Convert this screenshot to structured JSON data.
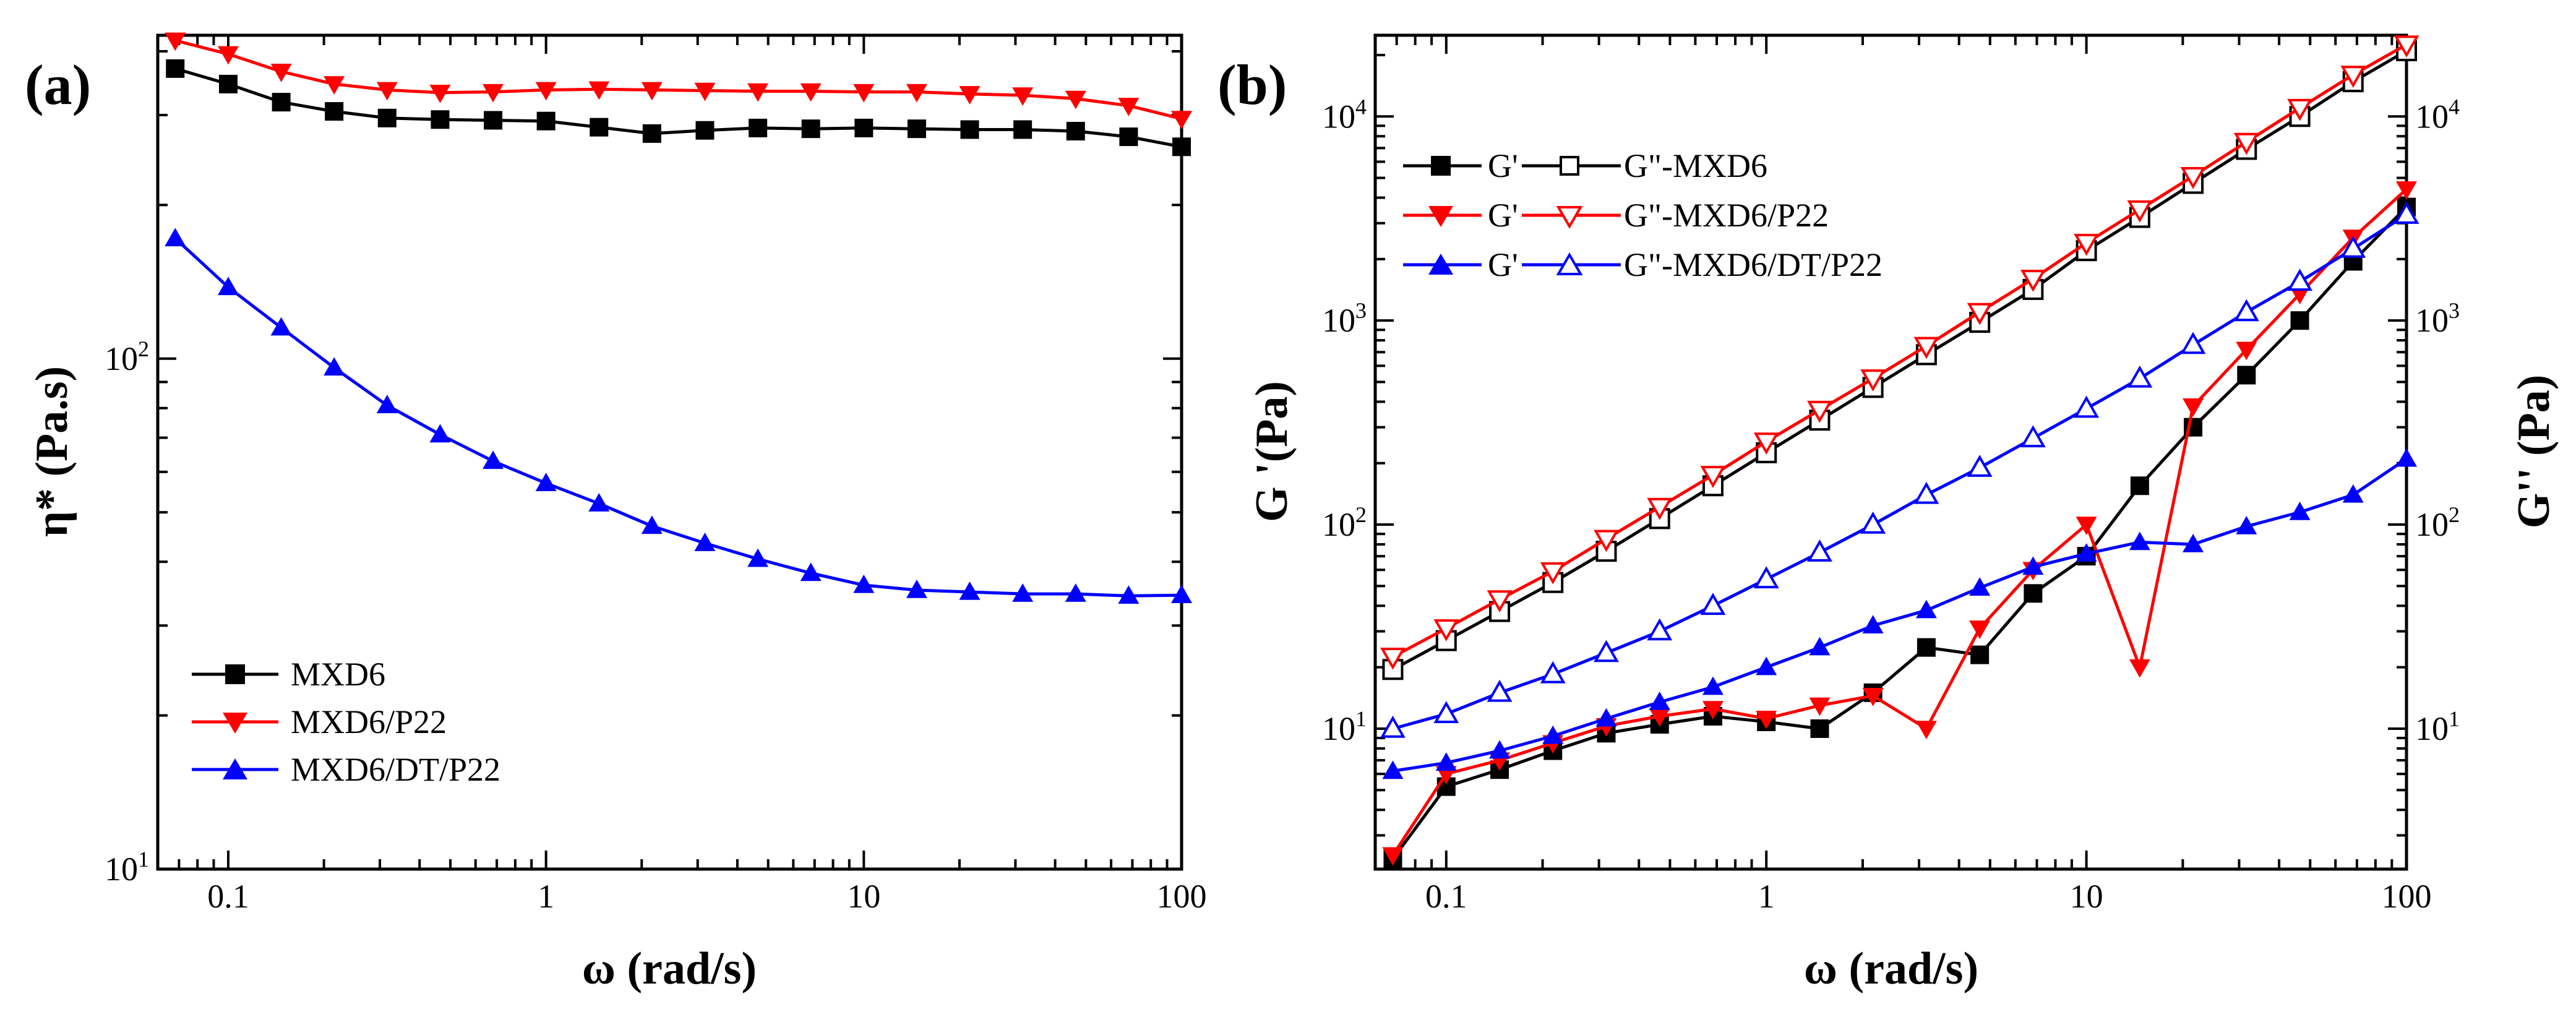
{
  "chart_data": [
    {
      "panel": "(a)",
      "type": "line",
      "xscale": "log",
      "yscale": "log",
      "xlim": [
        0.06,
        100
      ],
      "ylim": [
        10,
        430
      ],
      "xlabel": "ω (rad/s)",
      "ylabel": "η* (Pa.s)",
      "xticks": [
        {
          "value": 0.1,
          "label": "0.1"
        },
        {
          "value": 1,
          "label": "1"
        },
        {
          "value": 10,
          "label": "10"
        },
        {
          "value": 100,
          "label": "100"
        }
      ],
      "yticks": [
        {
          "value": 10,
          "base": "10",
          "exp": "1"
        },
        {
          "value": 100,
          "base": "10",
          "exp": "2"
        }
      ],
      "legend_position": "bottom-left",
      "x": [
        0.0681,
        0.1,
        0.1468,
        0.2154,
        0.3162,
        0.4642,
        0.6813,
        1,
        1.468,
        2.154,
        3.162,
        4.642,
        6.813,
        10,
        14.68,
        21.54,
        31.62,
        46.42,
        68.13,
        100
      ],
      "series": [
        {
          "name": "MXD6",
          "color": "#000000",
          "marker": "square",
          "filled": true,
          "values": [
            370,
            345,
            318,
            305,
            296,
            294,
            293,
            292,
            284,
            276,
            280,
            283,
            282,
            283,
            282,
            281,
            281,
            279,
            272,
            260
          ]
        },
        {
          "name": "MXD6/P22",
          "color": "#ff0000",
          "marker": "triangle-down",
          "filled": true,
          "values": [
            420,
            395,
            365,
            345,
            336,
            332,
            333,
            336,
            337,
            336,
            335,
            334,
            334,
            333,
            333,
            330,
            328,
            323,
            313,
            295
          ]
        },
        {
          "name": "MXD6/DT/P22",
          "color": "#0000ff",
          "marker": "triangle-up",
          "filled": true,
          "values": [
            172,
            138,
            115,
            96,
            81,
            71,
            63,
            57,
            52,
            47,
            43.5,
            40.5,
            38,
            36,
            35.2,
            34.9,
            34.6,
            34.6,
            34.3,
            34.4
          ]
        }
      ]
    },
    {
      "panel": "(b)",
      "type": "line",
      "xscale": "log",
      "yscale": "log",
      "xlim": [
        0.06,
        100
      ],
      "ylim": [
        2.05,
        25000
      ],
      "xlabel": "ω (rad/s)",
      "ylabel": "G '(Pa)",
      "ylabel_right": "G'' (Pa)",
      "xticks": [
        {
          "value": 0.1,
          "label": "0.1"
        },
        {
          "value": 1,
          "label": "1"
        },
        {
          "value": 10,
          "label": "10"
        },
        {
          "value": 100,
          "label": "100"
        }
      ],
      "yticks": [
        {
          "value": 10,
          "base": "10",
          "exp": "1"
        },
        {
          "value": 100,
          "base": "10",
          "exp": "2"
        },
        {
          "value": 1000,
          "base": "10",
          "exp": "3"
        },
        {
          "value": 10000,
          "base": "10",
          "exp": "4"
        }
      ],
      "legend_position": "top-left",
      "legend": [
        {
          "prefix": "G'",
          "label": "G\"-MXD6",
          "color": "#000000",
          "filled_marker": "square",
          "open_marker": "square"
        },
        {
          "prefix": "G'",
          "label": "G\"-MXD6/P22",
          "color": "#ff0000",
          "filled_marker": "triangle-down",
          "open_marker": "triangle-down"
        },
        {
          "prefix": "G'",
          "label": "G\"-MXD6/DT/P22",
          "color": "#0000ff",
          "filled_marker": "triangle-up",
          "open_marker": "triangle-up"
        }
      ],
      "x": [
        0.0681,
        0.1,
        0.1468,
        0.2154,
        0.3162,
        0.4642,
        0.6813,
        1,
        1.468,
        2.154,
        3.162,
        4.642,
        6.813,
        10,
        14.68,
        21.54,
        31.62,
        46.42,
        68.13,
        100
      ],
      "series": [
        {
          "name": "G'-MXD6",
          "color": "#000000",
          "marker": "square",
          "filled": true,
          "values": [
            2.3,
            5.2,
            6.3,
            7.8,
            9.5,
            10.5,
            11.5,
            10.8,
            10,
            15,
            25,
            23,
            46,
            70,
            155,
            300,
            540,
            1000,
            1950,
            3600
          ]
        },
        {
          "name": "G\"-MXD6",
          "color": "#000000",
          "marker": "square",
          "filled": false,
          "values": [
            19.5,
            27,
            37.5,
            52,
            74,
            107,
            155,
            225,
            325,
            470,
            680,
            980,
            1420,
            2200,
            3200,
            4700,
            6900,
            10000,
            14800,
            21000
          ]
        },
        {
          "name": "G'-MXD6/P22",
          "color": "#ff0000",
          "marker": "triangle-down",
          "filled": true,
          "values": [
            2.4,
            6,
            7,
            8.5,
            10.3,
            11.5,
            12.5,
            11.2,
            13,
            14.5,
            10,
            31,
            60,
            100,
            20,
            380,
            720,
            1350,
            2550,
            4400
          ]
        },
        {
          "name": "G\"-MXD6/P22",
          "color": "#ff0000",
          "marker": "triangle-down",
          "filled": false,
          "values": [
            22.5,
            31,
            43,
            59,
            85,
            122,
            175,
            255,
            365,
            520,
            750,
            1100,
            1600,
            2400,
            3500,
            5100,
            7500,
            11000,
            16000,
            22500
          ]
        },
        {
          "name": "G'-MXD6/DT/P22",
          "color": "#0000ff",
          "marker": "triangle-up",
          "filled": true,
          "values": [
            6.2,
            6.8,
            7.8,
            9.2,
            11.2,
            13.5,
            16,
            20,
            25,
            32,
            38,
            49,
            62,
            72,
            82,
            80,
            98,
            115,
            140,
            210
          ]
        },
        {
          "name": "G\"-MXD6/DT/P22",
          "color": "#0000ff",
          "marker": "triangle-up",
          "filled": false,
          "values": [
            10,
            11.8,
            15,
            18.5,
            23.5,
            30,
            40,
            54,
            73,
            100,
            140,
            190,
            265,
            370,
            520,
            760,
            1100,
            1550,
            2250,
            3300
          ]
        }
      ]
    }
  ]
}
